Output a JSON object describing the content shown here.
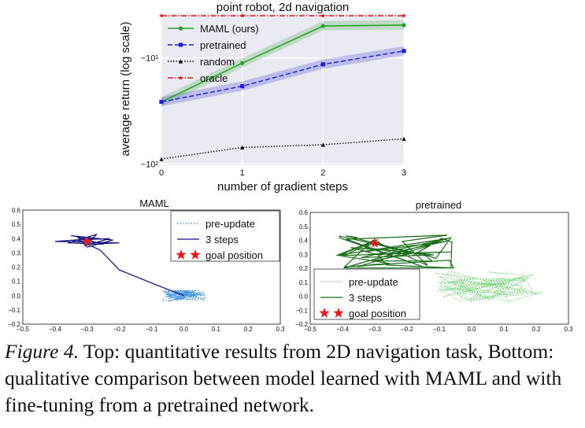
{
  "chart_data": [
    {
      "type": "line",
      "title": "point robot, 2d navigation",
      "xlabel": "number of gradient steps",
      "ylabel": "average return (log scale)",
      "x": [
        0,
        1,
        2,
        3
      ],
      "xticks": [
        "0",
        "1",
        "2",
        "3"
      ],
      "yscale": "log",
      "ylim": [
        -103,
        -3.8
      ],
      "ytick_values": [
        -10,
        -100
      ],
      "ytick_labels": [
        "−10¹",
        "−10²"
      ],
      "legend_position": "upper-left",
      "series": [
        {
          "name": "MAML (ours)",
          "values": [
            -26,
            -11.2,
            -5.0,
            -4.9
          ],
          "color": "#2ca02c",
          "style": "solid",
          "marker": "circle",
          "band": true
        },
        {
          "name": "pretrained",
          "values": [
            -26,
            -18.5,
            -11.5,
            -8.6
          ],
          "color": "#1f1fd8",
          "style": "dashed",
          "marker": "square",
          "band": true
        },
        {
          "name": "random",
          "values": [
            -90,
            -70,
            -66,
            -58
          ],
          "color": "#111111",
          "style": "dotted",
          "marker": "triangle",
          "band": false
        },
        {
          "name": "oracle",
          "values": [
            -4.0,
            -4.0,
            -4.0,
            -4.0
          ],
          "color": "#e0191b",
          "style": "dashdot",
          "marker": "star",
          "band": false
        }
      ]
    },
    {
      "type": "line",
      "title": "MAML",
      "xlim": [
        -0.5,
        0.3
      ],
      "ylim": [
        -0.2,
        0.6
      ],
      "xticks": [
        "−0.5",
        "−0.4",
        "−0.3",
        "−0.2",
        "−0.1",
        "0.0",
        "0.1",
        "0.2",
        "0.3"
      ],
      "yticks": [
        "−0.2",
        "−0.1",
        "0.0",
        "0.1",
        "0.2",
        "0.3",
        "0.4",
        "0.5",
        "0.6"
      ],
      "legend_position": "upper-right",
      "legend": [
        "pre-update",
        "3 steps",
        "goal position"
      ],
      "goal": [
        -0.3,
        0.38
      ],
      "series": [
        {
          "name": "pre-update",
          "color": "#3a8fde",
          "style": "dotted",
          "center": [
            0.0,
            0.0
          ],
          "spread": [
            0.07,
            0.04
          ]
        },
        {
          "name": "3 steps",
          "color": "#10107e",
          "style": "solid",
          "points": [
            [
              0.0,
              0.0
            ],
            [
              -0.09,
              0.08
            ],
            [
              -0.2,
              0.18
            ],
            [
              -0.26,
              0.32
            ],
            [
              -0.3,
              0.36
            ],
            [
              -0.2,
              0.37
            ],
            [
              -0.4,
              0.38
            ],
            [
              -0.28,
              0.4
            ],
            [
              -0.35,
              0.42
            ],
            [
              -0.22,
              0.39
            ],
            [
              -0.3,
              0.34
            ],
            [
              -0.33,
              0.41
            ],
            [
              -0.25,
              0.36
            ],
            [
              -0.36,
              0.37
            ],
            [
              -0.27,
              0.43
            ],
            [
              -0.31,
              0.35
            ],
            [
              -0.23,
              0.4
            ],
            [
              -0.34,
              0.39
            ],
            [
              -0.29,
              0.37
            ]
          ]
        }
      ]
    },
    {
      "type": "line",
      "title": "pretrained",
      "xlim": [
        -0.5,
        0.3
      ],
      "ylim": [
        -0.2,
        0.6
      ],
      "xticks": [
        "−0.5",
        "−0.4",
        "−0.3",
        "−0.2",
        "−0.1",
        "0.0",
        "0.1",
        "0.2",
        "0.3"
      ],
      "yticks": [
        "−0.2",
        "−0.1",
        "0.0",
        "0.1",
        "0.2",
        "0.3",
        "0.4",
        "0.5",
        "0.6"
      ],
      "legend_position": "lower-left",
      "legend": [
        "pre-update",
        "3 steps",
        "goal position"
      ],
      "goal": [
        -0.3,
        0.38
      ],
      "series": [
        {
          "name": "pre-update",
          "color": "#7ad47a",
          "style": "dotted",
          "center": [
            0.05,
            0.07
          ],
          "spread": [
            0.17,
            0.11
          ]
        },
        {
          "name": "3 steps",
          "color": "#1a6b1a",
          "style": "solid",
          "center": [
            -0.25,
            0.32
          ],
          "spread": [
            0.21,
            0.12
          ]
        }
      ]
    }
  ],
  "caption": {
    "label": "Figure 4.",
    "text": " Top: quantitative results from 2D navigation task, Bottom: qualitative comparison between model learned with MAML and with fine-tuning from a pretrained network."
  }
}
